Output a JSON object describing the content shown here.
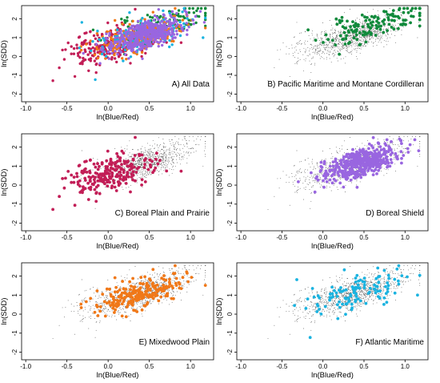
{
  "figure": {
    "note": ""
  },
  "colors": {
    "background": "#ffffff",
    "axis": "#000000",
    "background_points": "#555555",
    "pacific": "#118a3c",
    "boreal_plain": "#c21e57",
    "boreal_shield": "#9966e0",
    "mixedwood": "#f07818",
    "atlantic": "#1ab3e0"
  },
  "chart_data": [
    {
      "type": "scatter",
      "panel_id": "A",
      "annotation": "A) All Data",
      "xlabel": "ln(Blue/Red)",
      "ylabel": "ln(SDD)",
      "xlim": [
        -1.05,
        1.28
      ],
      "ylim": [
        -2.4,
        2.7
      ],
      "xticks": [
        -1.0,
        -0.5,
        0.0,
        0.5,
        1.0
      ],
      "xtick_labels": [
        "-1.0",
        "-0.5",
        "0.0",
        "0.5",
        "1.0"
      ],
      "yticks": [
        -2,
        -1,
        0,
        1,
        2
      ],
      "ytick_labels": [
        "-2",
        "-1",
        "0",
        "1",
        "2"
      ],
      "grid": false,
      "highlight": "all",
      "series": [
        {
          "region": "pacific",
          "cx": 0.62,
          "cy": 1.65,
          "sx": 0.3,
          "sy": 0.5,
          "n": 140
        },
        {
          "region": "boreal_plain",
          "cx": 0.0,
          "cy": 0.55,
          "sx": 0.26,
          "sy": 0.65,
          "n": 240
        },
        {
          "region": "mixedwood",
          "cx": 0.4,
          "cy": 1.1,
          "sx": 0.27,
          "sy": 0.5,
          "n": 230
        },
        {
          "region": "atlantic",
          "cx": 0.45,
          "cy": 1.2,
          "sx": 0.3,
          "sy": 0.7,
          "n": 120
        },
        {
          "region": "boreal_shield",
          "cx": 0.45,
          "cy": 1.15,
          "sx": 0.22,
          "sy": 0.48,
          "n": 450
        }
      ]
    },
    {
      "type": "scatter",
      "panel_id": "B",
      "annotation": "B) Pacific Maritime and Montane Cordilleran",
      "xlabel": "ln(Blue/Red)",
      "ylabel": "ln(SDD)",
      "xlim": [
        -1.05,
        1.28
      ],
      "ylim": [
        -2.4,
        2.7
      ],
      "xticks": [
        -1.0,
        -0.5,
        0.0,
        0.5,
        1.0
      ],
      "xtick_labels": [
        "-1.0",
        "-0.5",
        "0.0",
        "0.5",
        "1.0"
      ],
      "yticks": [
        -2,
        -1,
        0,
        1,
        2
      ],
      "ytick_labels": [
        "-2",
        "-1",
        "0",
        "1",
        "2"
      ],
      "grid": false,
      "highlight": "pacific",
      "series": [
        {
          "region": "pacific",
          "cx": 0.62,
          "cy": 1.65,
          "sx": 0.3,
          "sy": 0.5,
          "n": 140
        }
      ]
    },
    {
      "type": "scatter",
      "panel_id": "C",
      "annotation": "C) Boreal Plain and Prairie",
      "xlabel": "ln(Blue/Red)",
      "ylabel": "ln(SDD)",
      "xlim": [
        -1.05,
        1.28
      ],
      "ylim": [
        -2.4,
        2.7
      ],
      "xticks": [
        -1.0,
        -0.5,
        0.0,
        0.5,
        1.0
      ],
      "xtick_labels": [
        "-1.0",
        "-0.5",
        "0.0",
        "0.5",
        "1.0"
      ],
      "yticks": [
        -2,
        -1,
        0,
        1,
        2
      ],
      "ytick_labels": [
        "-2",
        "-1",
        "0",
        "1",
        "2"
      ],
      "grid": false,
      "highlight": "boreal_plain",
      "series": [
        {
          "region": "boreal_plain",
          "cx": 0.0,
          "cy": 0.55,
          "sx": 0.26,
          "sy": 0.65,
          "n": 240
        }
      ]
    },
    {
      "type": "scatter",
      "panel_id": "D",
      "annotation": "D) Boreal Shield",
      "xlabel": "ln(Blue/Red)",
      "ylabel": "ln(SDD)",
      "xlim": [
        -1.05,
        1.28
      ],
      "ylim": [
        -2.4,
        2.7
      ],
      "xticks": [
        -1.0,
        -0.5,
        0.0,
        0.5,
        1.0
      ],
      "xtick_labels": [
        "-1.0",
        "-0.5",
        "0.0",
        "0.5",
        "1.0"
      ],
      "yticks": [
        -2,
        -1,
        0,
        1,
        2
      ],
      "ytick_labels": [
        "-2",
        "-1",
        "0",
        "1",
        "2"
      ],
      "grid": false,
      "highlight": "boreal_shield",
      "series": [
        {
          "region": "boreal_shield",
          "cx": 0.45,
          "cy": 1.15,
          "sx": 0.22,
          "sy": 0.48,
          "n": 450
        }
      ]
    },
    {
      "type": "scatter",
      "panel_id": "E",
      "annotation": "E) Mixedwood Plain",
      "xlabel": "ln(Blue/Red)",
      "ylabel": "ln(SDD)",
      "xlim": [
        -1.05,
        1.28
      ],
      "ylim": [
        -2.4,
        2.7
      ],
      "xticks": [
        -1.0,
        -0.5,
        0.0,
        0.5,
        1.0
      ],
      "xtick_labels": [
        "-1.0",
        "-0.5",
        "0.0",
        "0.5",
        "1.0"
      ],
      "yticks": [
        -2,
        -1,
        0,
        1,
        2
      ],
      "ytick_labels": [
        "-2",
        "-1",
        "0",
        "1",
        "2"
      ],
      "grid": false,
      "highlight": "mixedwood",
      "series": [
        {
          "region": "mixedwood",
          "cx": 0.4,
          "cy": 1.1,
          "sx": 0.27,
          "sy": 0.5,
          "n": 230
        }
      ]
    },
    {
      "type": "scatter",
      "panel_id": "F",
      "annotation": "F) Atlantic Maritime",
      "xlabel": "ln(Blue/Red)",
      "ylabel": "ln(SDD)",
      "xlim": [
        -1.05,
        1.28
      ],
      "ylim": [
        -2.4,
        2.7
      ],
      "xticks": [
        -1.0,
        -0.5,
        0.0,
        0.5,
        1.0
      ],
      "xtick_labels": [
        "-1.0",
        "-0.5",
        "0.0",
        "0.5",
        "1.0"
      ],
      "yticks": [
        -2,
        -1,
        0,
        1,
        2
      ],
      "ytick_labels": [
        "-2",
        "-1",
        "0",
        "1",
        "2"
      ],
      "grid": false,
      "highlight": "atlantic",
      "series": [
        {
          "region": "atlantic",
          "cx": 0.45,
          "cy": 1.2,
          "sx": 0.3,
          "sy": 0.7,
          "n": 120
        }
      ]
    }
  ]
}
